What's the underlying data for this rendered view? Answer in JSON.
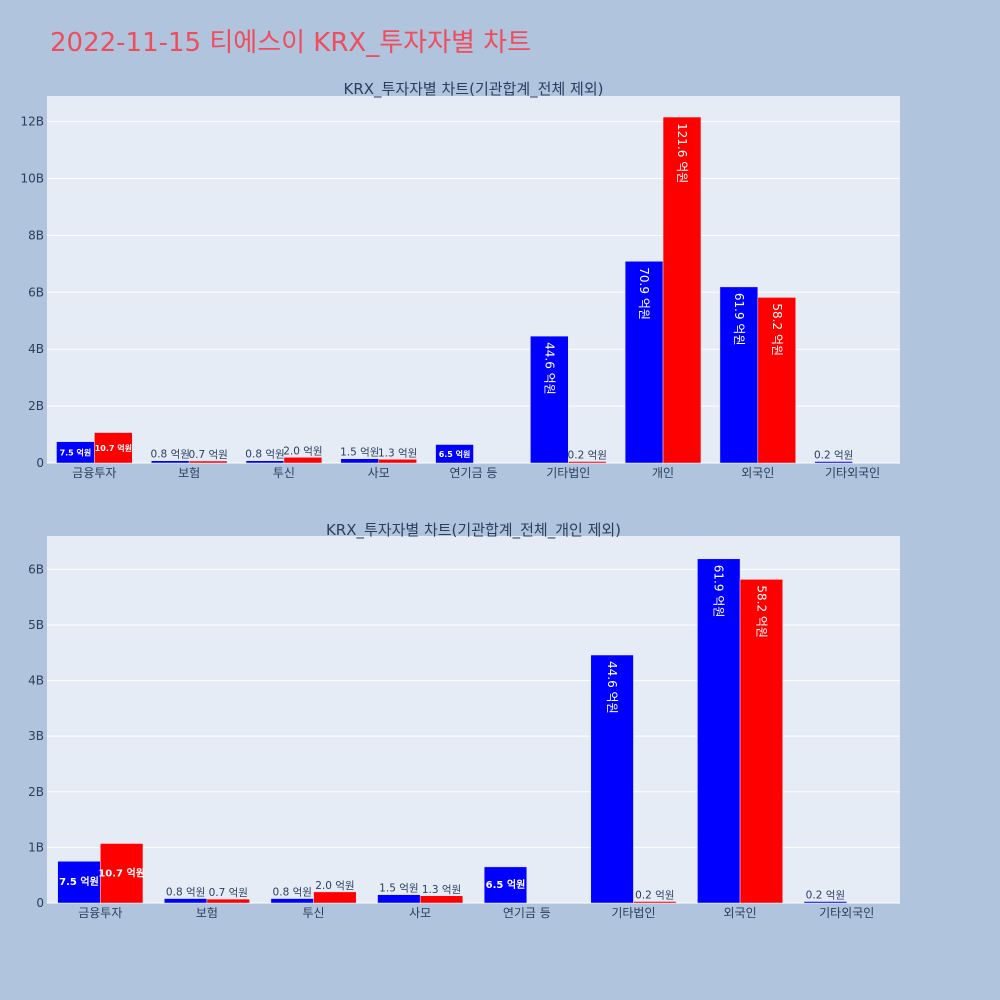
{
  "page_title": "2022-11-15 티에스이 KRX_투자자별 차트",
  "colors": {
    "buy": "#0000ff",
    "sell": "#ff0000",
    "plot_bg": "#e5ecf6",
    "page_bg": "#b0c4de",
    "title": "#ef4c5c"
  },
  "chart_data": [
    {
      "type": "bar",
      "title": "KRX_투자자별 차트(기관합계_전체 제외)",
      "categories": [
        "금융투자",
        "보험",
        "투신",
        "사모",
        "연기금 등",
        "기타법인",
        "개인",
        "외국인",
        "기타외국인"
      ],
      "series": [
        {
          "values": [
            750000000,
            80000000,
            80000000,
            150000000,
            650000000,
            4460000000,
            7090000000,
            6190000000,
            20000000
          ],
          "labels": [
            "7.5 억원",
            "0.8 억원",
            "0.8 억원",
            "1.5 억원",
            "6.5 억원",
            "44.6 억원",
            "70.9 억원",
            "61.9 억원",
            "0.2 억원"
          ]
        },
        {
          "values": [
            1070000000,
            70000000,
            200000000,
            130000000,
            0,
            20000000,
            12160000000,
            5820000000,
            0
          ],
          "labels": [
            "10.7 억원",
            "0.7 억원",
            "2.0 억원",
            "1.3 억원",
            "",
            "0.2 억원",
            "121.6 억원",
            "58.2 억원",
            ""
          ]
        }
      ],
      "ylim": [
        0,
        12900000000
      ],
      "yticks": [
        0,
        2000000000,
        4000000000,
        6000000000,
        8000000000,
        10000000000,
        12000000000
      ],
      "ytick_labels": [
        "0",
        "2B",
        "4B",
        "6B",
        "8B",
        "10B",
        "12B"
      ],
      "grid": true
    },
    {
      "type": "bar",
      "title": "KRX_투자자별 차트(기관합계_전체_개인 제외)",
      "categories": [
        "금융투자",
        "보험",
        "투신",
        "사모",
        "연기금 등",
        "기타법인",
        "외국인",
        "기타외국인"
      ],
      "series": [
        {
          "values": [
            750000000,
            80000000,
            80000000,
            150000000,
            650000000,
            4460000000,
            6190000000,
            20000000
          ],
          "labels": [
            "7.5 억원",
            "0.8 억원",
            "0.8 억원",
            "1.5 억원",
            "6.5 억원",
            "44.6 억원",
            "61.9 억원",
            "0.2 억원"
          ]
        },
        {
          "values": [
            1070000000,
            70000000,
            200000000,
            130000000,
            0,
            20000000,
            5820000000,
            0
          ],
          "labels": [
            "10.7 억원",
            "0.7 억원",
            "2.0 억원",
            "1.3 억원",
            "",
            "0.2 억원",
            "58.2 억원",
            ""
          ]
        }
      ],
      "ylim": [
        0,
        6600000000
      ],
      "yticks": [
        0,
        1000000000,
        2000000000,
        3000000000,
        4000000000,
        5000000000,
        6000000000
      ],
      "ytick_labels": [
        "0",
        "1B",
        "2B",
        "3B",
        "4B",
        "5B",
        "6B"
      ],
      "grid": true
    }
  ]
}
